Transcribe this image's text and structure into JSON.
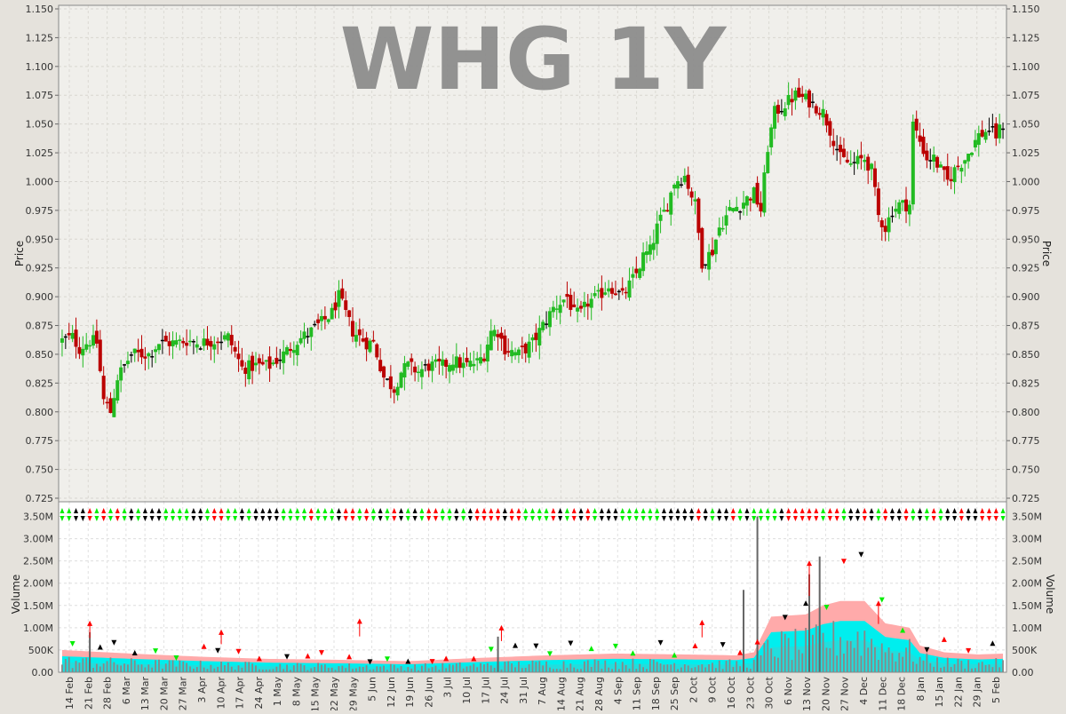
{
  "chart_data": [
    {
      "type": "candlestick",
      "title": "WHG 1Y",
      "ylabel": "Price",
      "ylim": [
        0.725,
        1.15
      ],
      "yticks": [
        "0.725",
        "0.750",
        "0.775",
        "0.800",
        "0.825",
        "0.850",
        "0.875",
        "0.900",
        "0.925",
        "0.950",
        "0.975",
        "1.000",
        "1.025",
        "1.050",
        "1.075",
        "1.100",
        "1.125",
        "1.150"
      ],
      "grid": true,
      "colors": {
        "up": "#22bb22",
        "down": "#bb0000",
        "flat": "#000000",
        "background": "#f0efeb"
      },
      "close_path": [
        [
          0,
          0.862
        ],
        [
          3,
          0.865
        ],
        [
          5,
          0.855
        ],
        [
          8,
          0.862
        ],
        [
          10,
          0.86
        ],
        [
          12,
          0.81
        ],
        [
          14,
          0.8
        ],
        [
          16,
          0.83
        ],
        [
          20,
          0.85
        ],
        [
          25,
          0.85
        ],
        [
          28,
          0.86
        ],
        [
          33,
          0.86
        ],
        [
          36,
          0.862
        ],
        [
          40,
          0.86
        ],
        [
          44,
          0.862
        ],
        [
          48,
          0.865
        ],
        [
          52,
          0.838
        ],
        [
          56,
          0.84
        ],
        [
          60,
          0.84
        ],
        [
          64,
          0.85
        ],
        [
          68,
          0.862
        ],
        [
          72,
          0.87
        ],
        [
          76,
          0.88
        ],
        [
          78,
          0.886
        ],
        [
          80,
          0.9
        ],
        [
          82,
          0.885
        ],
        [
          84,
          0.87
        ],
        [
          86,
          0.865
        ],
        [
          88,
          0.86
        ],
        [
          90,
          0.86
        ],
        [
          93,
          0.83
        ],
        [
          96,
          0.82
        ],
        [
          98,
          0.835
        ],
        [
          100,
          0.84
        ],
        [
          103,
          0.835
        ],
        [
          106,
          0.84
        ],
        [
          110,
          0.84
        ],
        [
          113,
          0.845
        ],
        [
          116,
          0.84
        ],
        [
          120,
          0.843
        ],
        [
          122,
          0.85
        ],
        [
          124,
          0.87
        ],
        [
          126,
          0.87
        ],
        [
          128,
          0.855
        ],
        [
          132,
          0.85
        ],
        [
          136,
          0.86
        ],
        [
          138,
          0.87
        ],
        [
          142,
          0.89
        ],
        [
          146,
          0.9
        ],
        [
          148,
          0.885
        ],
        [
          150,
          0.885
        ],
        [
          152,
          0.895
        ],
        [
          155,
          0.9
        ],
        [
          158,
          0.91
        ],
        [
          162,
          0.9
        ],
        [
          166,
          0.92
        ],
        [
          168,
          0.935
        ],
        [
          170,
          0.94
        ],
        [
          172,
          0.96
        ],
        [
          175,
          0.98
        ],
        [
          177,
          1.0
        ],
        [
          180,
          1.005
        ],
        [
          183,
          0.98
        ],
        [
          185,
          0.93
        ],
        [
          188,
          0.94
        ],
        [
          190,
          0.96
        ],
        [
          193,
          0.975
        ],
        [
          196,
          0.98
        ],
        [
          198,
          0.985
        ],
        [
          200,
          0.99
        ],
        [
          202,
          0.975
        ],
        [
          204,
          1.03
        ],
        [
          206,
          1.06
        ],
        [
          208,
          1.065
        ],
        [
          212,
          1.075
        ],
        [
          216,
          1.07
        ],
        [
          220,
          1.06
        ],
        [
          222,
          1.045
        ],
        [
          225,
          1.02
        ],
        [
          228,
          1.015
        ],
        [
          232,
          1.02
        ],
        [
          234,
          1.01
        ],
        [
          236,
          0.97
        ],
        [
          238,
          0.96
        ],
        [
          240,
          0.975
        ],
        [
          242,
          0.98
        ],
        [
          245,
          0.98
        ],
        [
          246,
          1.05
        ],
        [
          250,
          1.02
        ],
        [
          252,
          1.02
        ],
        [
          254,
          1.01
        ],
        [
          256,
          1.0
        ],
        [
          258,
          1.01
        ],
        [
          261,
          1.02
        ],
        [
          263,
          1.03
        ],
        [
          265,
          1.04
        ],
        [
          268,
          1.045
        ],
        [
          270,
          1.04
        ],
        [
          272,
          1.05
        ]
      ],
      "date_labels": [
        "14 Feb",
        "21 Feb",
        "28 Feb",
        "6 Mar",
        "13 Mar",
        "20 Mar",
        "27 Mar",
        "3 Apr",
        "10 Apr",
        "17 Apr",
        "24 Apr",
        "1 May",
        "8 May",
        "15 May",
        "22 May",
        "29 May",
        "5 Jun",
        "12 Jun",
        "19 Jun",
        "26 Jun",
        "3 Jul",
        "10 Jul",
        "17 Jul",
        "24 Jul",
        "31 Jul",
        "7 Aug",
        "14 Aug",
        "21 Aug",
        "28 Aug",
        "4 Sep",
        "11 Sep",
        "18 Sep",
        "25 Sep",
        "2 Oct",
        "9 Oct",
        "16 Oct",
        "23 Oct",
        "30 Oct",
        "6 Nov",
        "13 Nov",
        "20 Nov",
        "27 Nov",
        "4 Dec",
        "11 Dec",
        "18 Dec",
        "8 Jan",
        "15 Jan",
        "22 Jan",
        "29 Jan",
        "5 Feb"
      ]
    },
    {
      "type": "bar",
      "ylabel": "Volume",
      "ylim": [
        0,
        3750000
      ],
      "yticks": [
        "0.00",
        "500K",
        "1.00M",
        "1.50M",
        "2.00M",
        "2.50M",
        "3.00M",
        "3.50M"
      ],
      "grid": true,
      "colors": {
        "bars": "#888888",
        "band_outer": "#ffaaaa",
        "band_inner": "#00eeee",
        "band_core": "#22dddd",
        "up_marker": "#ff0000",
        "down_marker": "#000000",
        "neutral_marker": "#00ee00"
      },
      "volume_spikes": [
        {
          "date": "30 Oct",
          "value": 3500000
        },
        {
          "date": "23 Oct",
          "value": 1850000
        },
        {
          "date": "20 Nov",
          "value": 2200000
        },
        {
          "date": "20 Nov",
          "value": 2600000
        },
        {
          "date": "21 Feb",
          "value": 900000
        },
        {
          "date": "24 Jul",
          "value": 800000
        }
      ],
      "band_levels_path": [
        [
          0,
          500000
        ],
        [
          20,
          420000
        ],
        [
          40,
          350000
        ],
        [
          60,
          300000
        ],
        [
          80,
          280000
        ],
        [
          100,
          250000
        ],
        [
          120,
          320000
        ],
        [
          140,
          380000
        ],
        [
          160,
          420000
        ],
        [
          180,
          400000
        ],
        [
          195,
          380000
        ],
        [
          200,
          450000
        ],
        [
          205,
          1250000
        ],
        [
          215,
          1300000
        ],
        [
          220,
          1500000
        ],
        [
          225,
          1600000
        ],
        [
          232,
          1600000
        ],
        [
          238,
          1100000
        ],
        [
          245,
          1000000
        ],
        [
          248,
          600000
        ],
        [
          255,
          450000
        ],
        [
          265,
          400000
        ],
        [
          272,
          420000
        ]
      ]
    }
  ]
}
